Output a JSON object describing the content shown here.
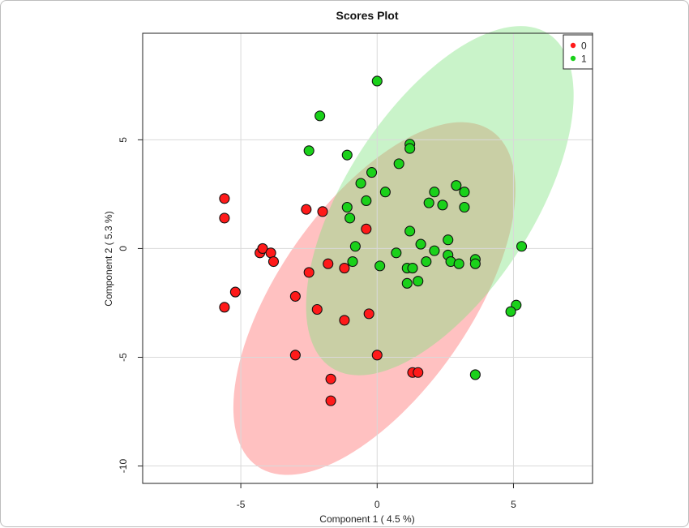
{
  "chart_data": {
    "type": "scatter",
    "title": "Scores Plot",
    "xlabel": "Component 1 ( 4.5 %)",
    "ylabel": "Component 2 ( 5.3 %)",
    "xlim": [
      -8.6,
      7.9
    ],
    "ylim": [
      -10.8,
      9.9
    ],
    "xticks": [
      -5,
      0,
      5
    ],
    "yticks": [
      -10,
      -5,
      0,
      5
    ],
    "grid": true,
    "legend_position": "top-right",
    "series": [
      {
        "name": "0",
        "color": "#ff1a1a",
        "ellipse_color": "#ff6b6b",
        "ellipse": {
          "cx": -0.1,
          "cy": -2.3,
          "rx": 7.5,
          "ry": 4.4,
          "angle_deg": -55
        },
        "points": [
          [
            -5.6,
            2.3
          ],
          [
            -5.6,
            1.4
          ],
          [
            -5.6,
            -2.7
          ],
          [
            -5.2,
            -2.0
          ],
          [
            -4.3,
            -0.2
          ],
          [
            -4.2,
            0.0
          ],
          [
            -3.9,
            -0.2
          ],
          [
            -3.8,
            -0.6
          ],
          [
            -3.0,
            -2.2
          ],
          [
            -3.0,
            -4.9
          ],
          [
            -2.6,
            1.8
          ],
          [
            -2.5,
            -1.1
          ],
          [
            -2.2,
            -2.8
          ],
          [
            -2.0,
            1.7
          ],
          [
            -1.8,
            -0.7
          ],
          [
            -1.7,
            -6.0
          ],
          [
            -1.7,
            -7.0
          ],
          [
            -1.2,
            -3.3
          ],
          [
            -1.2,
            -0.9
          ],
          [
            -0.4,
            0.9
          ],
          [
            -0.3,
            -3.0
          ],
          [
            0.0,
            -4.9
          ],
          [
            1.3,
            -5.7
          ],
          [
            1.5,
            -5.7
          ]
        ]
      },
      {
        "name": "1",
        "color": "#1ad11a",
        "ellipse_color": "#7ee27e",
        "ellipse": {
          "cx": 2.3,
          "cy": 2.2,
          "rx": 7.3,
          "ry": 4.3,
          "angle_deg": -57
        },
        "points": [
          [
            0.0,
            7.7
          ],
          [
            -2.1,
            6.1
          ],
          [
            -2.5,
            4.5
          ],
          [
            -1.1,
            4.3
          ],
          [
            1.2,
            4.8
          ],
          [
            1.2,
            4.6
          ],
          [
            0.8,
            3.9
          ],
          [
            -0.2,
            3.5
          ],
          [
            -0.6,
            3.0
          ],
          [
            0.3,
            2.6
          ],
          [
            -0.4,
            2.2
          ],
          [
            -1.1,
            1.9
          ],
          [
            -1.0,
            1.4
          ],
          [
            2.1,
            2.6
          ],
          [
            2.9,
            2.9
          ],
          [
            3.2,
            2.6
          ],
          [
            1.9,
            2.1
          ],
          [
            2.4,
            2.0
          ],
          [
            3.2,
            1.9
          ],
          [
            1.2,
            0.8
          ],
          [
            2.6,
            0.4
          ],
          [
            1.6,
            0.2
          ],
          [
            2.1,
            -0.1
          ],
          [
            2.6,
            -0.3
          ],
          [
            -0.8,
            0.1
          ],
          [
            0.7,
            -0.2
          ],
          [
            -0.9,
            -0.6
          ],
          [
            0.1,
            -0.8
          ],
          [
            1.1,
            -0.9
          ],
          [
            1.3,
            -0.9
          ],
          [
            2.7,
            -0.6
          ],
          [
            3.0,
            -0.7
          ],
          [
            3.6,
            -0.5
          ],
          [
            3.6,
            -0.7
          ],
          [
            1.8,
            -0.6
          ],
          [
            1.5,
            -1.5
          ],
          [
            1.1,
            -1.6
          ],
          [
            5.3,
            0.1
          ],
          [
            5.1,
            -2.6
          ],
          [
            4.9,
            -2.9
          ],
          [
            3.6,
            -5.8
          ]
        ]
      }
    ]
  }
}
